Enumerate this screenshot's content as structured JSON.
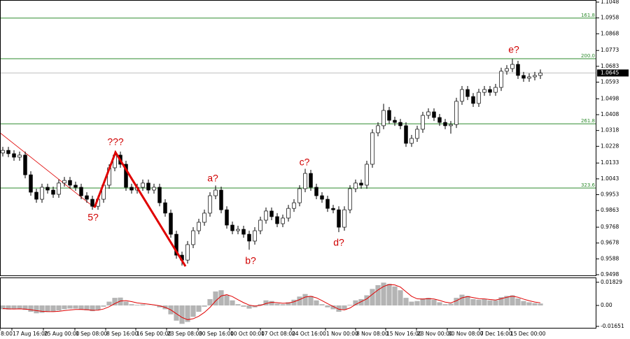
{
  "chart_data": [
    {
      "type": "candlestick",
      "up_color": "#ffffff",
      "down_color": "#000000",
      "open": [
        1.019,
        1.0205,
        1.0186,
        1.0166,
        1.0178,
        1.0066,
        0.9967,
        0.9927,
        0.9995,
        0.9979,
        0.9955,
        1.0019,
        1.0034,
        1.0007,
        0.9995,
        0.9947,
        0.9927,
        0.9887,
        0.9927,
        1.0007,
        1.0106,
        1.0178,
        1.0126,
        0.9995,
        0.9979,
        0.9995,
        1.0019,
        0.9979,
        0.9995,
        0.9907,
        0.9848,
        0.9728,
        0.9609,
        0.9581,
        0.9669,
        0.9748,
        0.9796,
        0.9848,
        0.9947,
        0.9979,
        0.9867,
        0.978,
        0.9748,
        0.9756,
        0.9728,
        0.9689,
        0.9748,
        0.9808,
        0.986,
        0.9828,
        0.9788,
        0.982,
        0.9875,
        0.9907,
        0.9987,
        1.0074,
        0.9995,
        0.9947,
        0.9927,
        0.9875,
        0.9867,
        0.9768,
        0.9867,
        0.9987,
        1.0019,
        1.0007,
        1.0126,
        1.0305,
        1.0345,
        1.0432,
        1.0376,
        1.0364,
        1.0345,
        1.0245,
        1.0273,
        1.0325,
        1.0404,
        1.0424,
        1.0392,
        1.0364,
        1.0345,
        1.0352,
        1.0484,
        1.0551,
        1.0511,
        1.0472,
        1.0535,
        1.0551,
        1.0535,
        1.0563,
        1.0655,
        1.067,
        1.0694,
        1.0631,
        1.0615,
        1.0623,
        1.0631
      ],
      "high": [
        1.0225,
        1.0225,
        1.0206,
        1.0198,
        1.0198,
        1.0086,
        0.9987,
        1.0015,
        1.0015,
        0.9999,
        1.0039,
        1.0054,
        1.0054,
        1.0027,
        1.0015,
        0.9967,
        0.9947,
        0.9947,
        1.0027,
        1.0126,
        1.0198,
        1.0198,
        1.0146,
        1.0015,
        1.0015,
        1.0039,
        1.0039,
        1.0015,
        1.0015,
        0.9927,
        0.9868,
        0.9748,
        0.9629,
        0.9689,
        0.9768,
        0.9816,
        0.9868,
        0.9967,
        1.0005,
        0.9999,
        0.9887,
        0.98,
        0.9776,
        0.9776,
        0.9748,
        0.9768,
        0.9828,
        0.988,
        0.988,
        0.9848,
        0.984,
        0.9895,
        0.9927,
        1.0007,
        1.01,
        1.0094,
        1.0015,
        0.9967,
        0.9947,
        0.9895,
        0.9887,
        0.9887,
        1.0007,
        1.0039,
        1.0039,
        1.0146,
        1.0325,
        1.0365,
        1.047,
        1.0452,
        1.0396,
        1.0384,
        1.0365,
        1.0293,
        1.0345,
        1.0424,
        1.0444,
        1.0444,
        1.0412,
        1.0384,
        1.0372,
        1.0504,
        1.0571,
        1.0571,
        1.0531,
        1.0555,
        1.0571,
        1.0571,
        1.0583,
        1.0675,
        1.069,
        1.0725,
        1.0714,
        1.0651,
        1.0643,
        1.0651,
        1.0665
      ],
      "low": [
        1.017,
        1.0166,
        1.0146,
        1.0146,
        1.0046,
        0.9947,
        0.9907,
        0.9907,
        0.9959,
        0.9935,
        0.9935,
        0.9999,
        0.9987,
        0.9975,
        0.9927,
        0.9907,
        0.9867,
        0.9867,
        0.9907,
        0.9987,
        1.0086,
        1.0106,
        0.9975,
        0.9959,
        0.9959,
        0.9975,
        0.9959,
        0.9959,
        0.9887,
        0.9828,
        0.9708,
        0.9589,
        0.955,
        0.9561,
        0.9649,
        0.9728,
        0.9776,
        0.9828,
        0.9927,
        0.9847,
        0.976,
        0.9728,
        0.9728,
        0.9708,
        0.964,
        0.9669,
        0.9728,
        0.9788,
        0.9808,
        0.9768,
        0.9768,
        0.98,
        0.9855,
        0.9887,
        0.9967,
        0.9975,
        0.9927,
        0.9907,
        0.9855,
        0.9847,
        0.974,
        0.9748,
        0.9847,
        0.9967,
        0.9987,
        0.9987,
        1.0106,
        1.0285,
        1.0325,
        1.0356,
        1.0344,
        1.0325,
        1.0225,
        1.0225,
        1.0253,
        1.0305,
        1.0384,
        1.0372,
        1.0344,
        1.0325,
        1.03,
        1.0332,
        1.0464,
        1.0491,
        1.0452,
        1.0452,
        1.0515,
        1.0515,
        1.0515,
        1.0543,
        1.0635,
        1.065,
        1.0611,
        1.0595,
        1.0595,
        1.0603,
        1.0611
      ],
      "close": [
        1.0205,
        1.0186,
        1.0166,
        1.0178,
        1.0066,
        0.9967,
        0.9927,
        0.9995,
        0.9979,
        0.9955,
        1.0019,
        1.0034,
        1.0007,
        0.9995,
        0.9947,
        0.9927,
        0.9887,
        0.9927,
        1.0007,
        1.0106,
        1.0178,
        1.0126,
        0.9995,
        0.9979,
        0.9995,
        1.0019,
        0.9979,
        0.9995,
        0.9907,
        0.9848,
        0.9728,
        0.9609,
        0.9581,
        0.9669,
        0.9748,
        0.9796,
        0.9848,
        0.9947,
        0.9979,
        0.9867,
        0.978,
        0.9748,
        0.9756,
        0.9728,
        0.9689,
        0.9748,
        0.9808,
        0.986,
        0.9828,
        0.9788,
        0.982,
        0.9875,
        0.9907,
        0.9987,
        1.0074,
        0.9995,
        0.9947,
        0.9927,
        0.9875,
        0.9867,
        0.9768,
        0.9867,
        0.9987,
        1.0019,
        1.0007,
        1.0126,
        1.0305,
        1.0345,
        1.0432,
        1.0376,
        1.0364,
        1.0345,
        1.0245,
        1.0273,
        1.0325,
        1.0404,
        1.0424,
        1.0392,
        1.0364,
        1.0345,
        1.0352,
        1.0484,
        1.0551,
        1.0511,
        1.0472,
        1.0535,
        1.0551,
        1.0535,
        1.0563,
        1.0655,
        1.067,
        1.0694,
        1.0631,
        1.0615,
        1.0623,
        1.0631,
        1.0645
      ],
      "xlim": [
        -0.5,
        106
      ],
      "xticks": [
        {
          "value": -0.5,
          "label": "8:00"
        },
        {
          "value": 1.625,
          "label": "17 Aug 16:00"
        },
        {
          "value": 7.25,
          "label": "25 Aug 00:00"
        },
        {
          "value": 12.875,
          "label": "1 Sep 08:00"
        },
        {
          "value": 18.375,
          "label": "8 Sep 16:00"
        },
        {
          "value": 23.75,
          "label": "16 Sep 00:00"
        },
        {
          "value": 29.25,
          "label": "23 Sep 08:00"
        },
        {
          "value": 34.875,
          "label": "30 Sep 16:00"
        },
        {
          "value": 40.5,
          "label": "10 Oct 00:00"
        },
        {
          "value": 46,
          "label": "17 Oct 08:00"
        },
        {
          "value": 51.5,
          "label": "24 Oct 16:00"
        },
        {
          "value": 57.625,
          "label": "1 Nov 00:00"
        },
        {
          "value": 63,
          "label": "8 Nov 08:00"
        },
        {
          "value": 68.375,
          "label": "15 Nov 16:00"
        },
        {
          "value": 73.875,
          "label": "23 Nov 00:00"
        },
        {
          "value": 79.375,
          "label": "30 Nov 08:00"
        },
        {
          "value": 85.125,
          "label": "7 Dec 16:00"
        },
        {
          "value": 90.5,
          "label": "15 Dec 00:00"
        }
      ],
      "ylim": [
        0.949,
        1.106
      ],
      "yticks": [
        1.1048,
        1.0958,
        1.0868,
        1.0773,
        1.0683,
        1.0593,
        1.0498,
        1.0408,
        1.0318,
        1.0228,
        1.0133,
        1.0043,
        0.9953,
        0.9863,
        0.9768,
        0.9678,
        0.9588,
        0.9498
      ],
      "fib_color": "#2e8b2e",
      "fib_levels": [
        {
          "label": "161.8",
          "value": 1.0957
        },
        {
          "label": "200.0",
          "value": 1.0726
        },
        {
          "label": "261.8",
          "value": 1.0356
        },
        {
          "label": "323.6",
          "value": 0.9991
        }
      ],
      "last_price": 1.0645,
      "annotations": [
        "5?",
        "???",
        "a?",
        "b?",
        "c?",
        "d?",
        "e?"
      ],
      "annotation_color": "#d00000"
    },
    {
      "type": "macd",
      "ylim": [
        -0.0182,
        0.0215
      ],
      "yticks": [
        0.01829,
        {
          "value": 0,
          "label": "0.00"
        },
        -0.01651
      ],
      "series": [
        {
          "kind": "bar",
          "color": "#b4b4b4",
          "values": [
            -0.003,
            -0.0032,
            -0.003,
            -0.0025,
            -0.0035,
            -0.005,
            -0.0062,
            -0.0058,
            -0.0052,
            -0.005,
            -0.004,
            -0.003,
            -0.0025,
            -0.0025,
            -0.0032,
            -0.0038,
            -0.0045,
            -0.0035,
            -0.001,
            0.003,
            0.006,
            0.0062,
            0.003,
            0.001,
            0.0005,
            0.0008,
            0.0002,
            -0.0002,
            -0.0015,
            -0.003,
            -0.007,
            -0.012,
            -0.0145,
            -0.013,
            -0.009,
            -0.005,
            -0.001,
            0.005,
            0.011,
            0.012,
            0.008,
            0.004,
            0.001,
            -0.001,
            -0.0025,
            -0.0015,
            0.001,
            0.004,
            0.0035,
            0.0015,
            0.001,
            0.0025,
            0.0045,
            0.007,
            0.009,
            0.0075,
            0.004,
            0.001,
            -0.0015,
            -0.003,
            -0.005,
            -0.0035,
            0.0005,
            0.004,
            0.005,
            0.008,
            0.013,
            0.016,
            0.018,
            0.017,
            0.015,
            0.012,
            0.006,
            0.003,
            0.0035,
            0.0055,
            0.006,
            0.0045,
            0.0025,
            0.001,
            0.0015,
            0.006,
            0.0085,
            0.0075,
            0.005,
            0.0045,
            0.005,
            0.004,
            0.004,
            0.0065,
            0.0075,
            0.008,
            0.0055,
            0.0035,
            0.0025,
            0.0018,
            0.0015
          ]
        },
        {
          "kind": "line",
          "color": "#e00000",
          "values": [
            -0.0025,
            -0.0027,
            -0.0028,
            -0.0027,
            -0.0029,
            -0.0034,
            -0.0041,
            -0.0046,
            -0.0048,
            -0.0049,
            -0.0046,
            -0.0041,
            -0.0036,
            -0.0032,
            -0.0032,
            -0.0034,
            -0.0038,
            -0.0037,
            -0.0028,
            -0.001,
            0.0015,
            0.0035,
            0.0038,
            0.003,
            0.002,
            0.0015,
            0.001,
            0.0005,
            -0.0003,
            -0.0015,
            -0.0035,
            -0.0065,
            -0.0095,
            -0.0112,
            -0.0105,
            -0.0085,
            -0.0055,
            -0.0015,
            0.0035,
            0.0075,
            0.0085,
            0.007,
            0.0045,
            0.0022,
            0.0003,
            -0.0005,
            0.0,
            0.0015,
            0.0025,
            0.0022,
            0.0017,
            0.0019,
            0.0029,
            0.0046,
            0.0066,
            0.0072,
            0.006,
            0.0038,
            0.0014,
            -0.0008,
            -0.003,
            -0.0035,
            -0.002,
            0.0008,
            0.003,
            0.0052,
            0.0088,
            0.0122,
            0.015,
            0.0165,
            0.0162,
            0.0145,
            0.0108,
            0.0072,
            0.0052,
            0.005,
            0.0054,
            0.0051,
            0.004,
            0.0026,
            0.002,
            0.0037,
            0.006,
            0.007,
            0.0062,
            0.0054,
            0.0052,
            0.0047,
            0.0043,
            0.0053,
            0.0065,
            0.0073,
            0.0065,
            0.005,
            0.0037,
            0.0027,
            0.0021
          ]
        }
      ]
    }
  ]
}
